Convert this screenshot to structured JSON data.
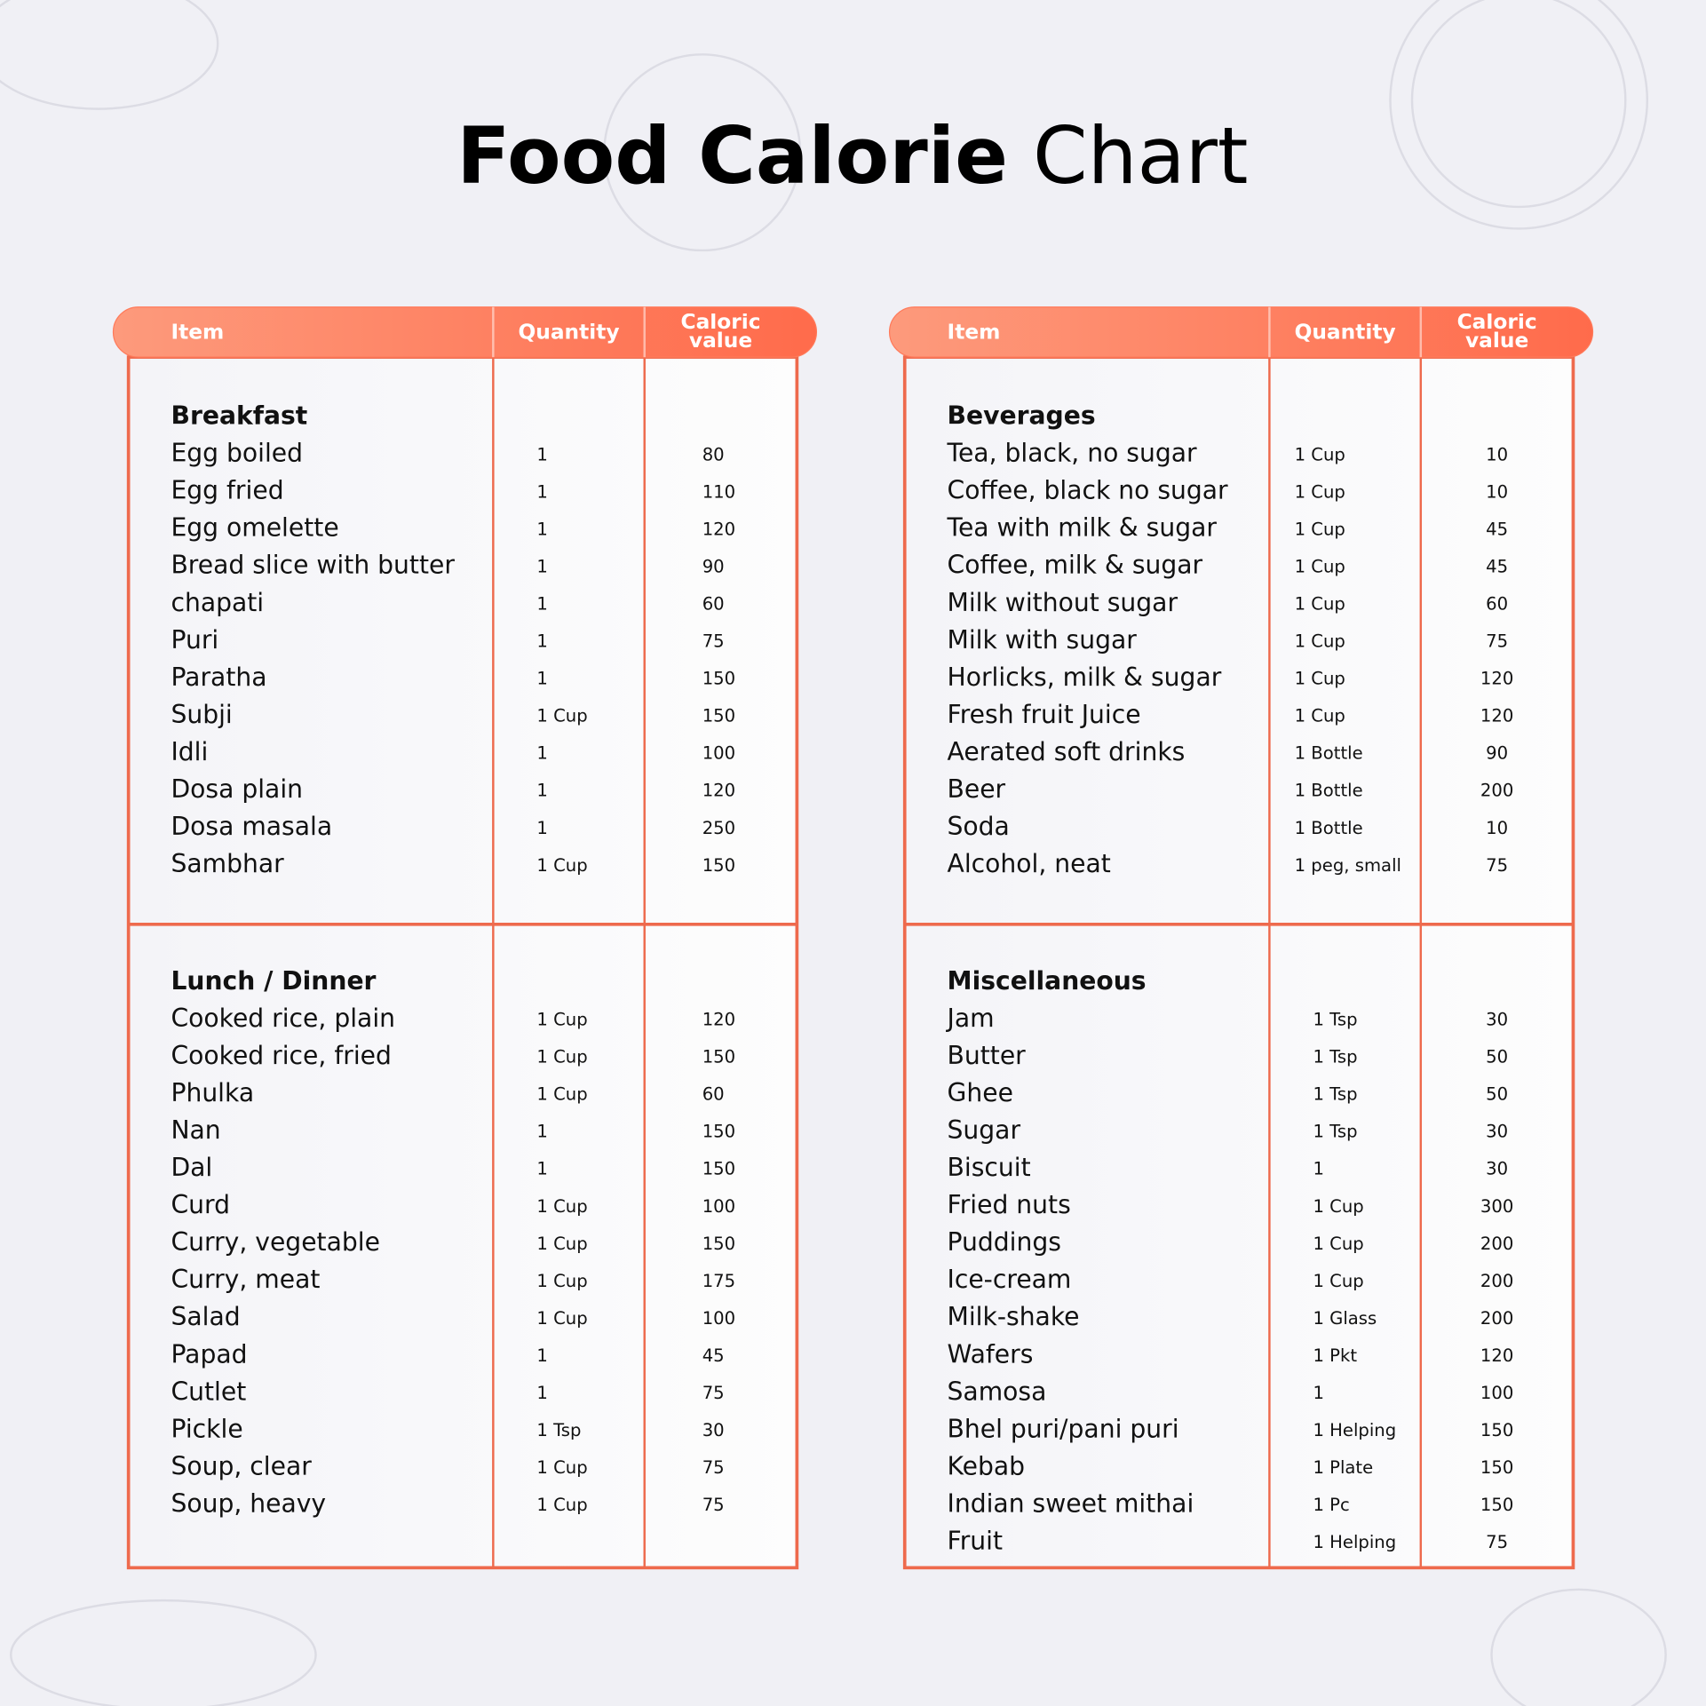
{
  "title": {
    "bold": "Food Calorie",
    "regular": "Chart"
  },
  "tables": [
    {
      "header": [
        "Item",
        "Quantity",
        "Caloric value"
      ],
      "sections": [
        {
          "title": "Breakfast",
          "rows": [
            [
              "Egg boiled",
              "1",
              "80"
            ],
            [
              "Egg fried",
              "1",
              "110"
            ],
            [
              "Egg omelette",
              "1",
              "120"
            ],
            [
              "Bread slice with butter",
              "1",
              "90"
            ],
            [
              "chapati",
              "1",
              "60"
            ],
            [
              "Puri",
              "1",
              "75"
            ],
            [
              "Paratha",
              "1",
              "150"
            ],
            [
              "Subji",
              "1 Cup",
              "150"
            ],
            [
              "Idli",
              "1",
              "100"
            ],
            [
              "Dosa plain",
              "1",
              "120"
            ],
            [
              "Dosa masala",
              "1",
              "250"
            ],
            [
              "Sambhar",
              "1 Cup",
              "150"
            ]
          ]
        },
        {
          "title": "Lunch / Dinner",
          "rows": [
            [
              "Cooked rice, plain",
              "1 Cup",
              "120"
            ],
            [
              "Cooked rice, fried",
              "1 Cup",
              "150"
            ],
            [
              "Phulka",
              "1 Cup",
              "60"
            ],
            [
              "Nan",
              "1",
              "150"
            ],
            [
              "Dal",
              "1",
              "150"
            ],
            [
              "Curd",
              "1 Cup",
              "100"
            ],
            [
              "Curry, vegetable",
              "1 Cup",
              "150"
            ],
            [
              "Curry, meat",
              "1 Cup",
              "175"
            ],
            [
              "Salad",
              "1 Cup",
              "100"
            ],
            [
              "Papad",
              "1",
              "45"
            ],
            [
              "Cutlet",
              "1",
              "75"
            ],
            [
              "Pickle",
              "1 Tsp",
              "30"
            ],
            [
              "Soup, clear",
              "1 Cup",
              "75"
            ],
            [
              "Soup, heavy",
              "1 Cup",
              "75"
            ]
          ]
        }
      ]
    },
    {
      "header": [
        "Item",
        "Quantity",
        "Caloric value"
      ],
      "sections": [
        {
          "title": "Beverages",
          "rows": [
            [
              "Tea, black, no sugar",
              "1 Cup",
              "10"
            ],
            [
              "Coffee, black no sugar",
              "1 Cup",
              "10"
            ],
            [
              "Tea with milk & sugar",
              "1 Cup",
              "45"
            ],
            [
              "Coffee, milk & sugar",
              "1 Cup",
              "45"
            ],
            [
              "Milk without sugar",
              "1 Cup",
              "60"
            ],
            [
              "Milk with sugar",
              "1 Cup",
              "75"
            ],
            [
              "Horlicks, milk & sugar",
              "1 Cup",
              "120"
            ],
            [
              "Fresh fruit Juice",
              "1 Cup",
              "120"
            ],
            [
              "Aerated soft drinks",
              "1 Bottle",
              "90"
            ],
            [
              "Beer",
              "1 Bottle",
              "200"
            ],
            [
              "Soda",
              "1 Bottle",
              "10"
            ],
            [
              "Alcohol, neat",
              "1 peg, small",
              "75"
            ]
          ]
        },
        {
          "title": "Miscellaneous",
          "rows": [
            [
              "Jam",
              "1 Tsp",
              "30"
            ],
            [
              "Butter",
              "1 Tsp",
              "50"
            ],
            [
              "Ghee",
              "1 Tsp",
              "50"
            ],
            [
              "Sugar",
              "1 Tsp",
              "30"
            ],
            [
              "Biscuit",
              "1",
              "30"
            ],
            [
              "Fried nuts",
              "1 Cup",
              "300"
            ],
            [
              "Puddings",
              "1 Cup",
              "200"
            ],
            [
              "Ice-cream",
              "1 Cup",
              "200"
            ],
            [
              "Milk-shake",
              "1 Glass",
              "200"
            ],
            [
              "Wafers",
              "1 Pkt",
              "120"
            ],
            [
              "Samosa",
              "1",
              "100"
            ],
            [
              "Bhel puri/pani puri",
              "1 Helping",
              "150"
            ],
            [
              "Kebab",
              "1 Plate",
              "150"
            ],
            [
              "Indian sweet mithai",
              "1 Pc",
              "150"
            ],
            [
              "Fruit",
              "1 Helping",
              "75"
            ]
          ]
        }
      ]
    }
  ]
}
